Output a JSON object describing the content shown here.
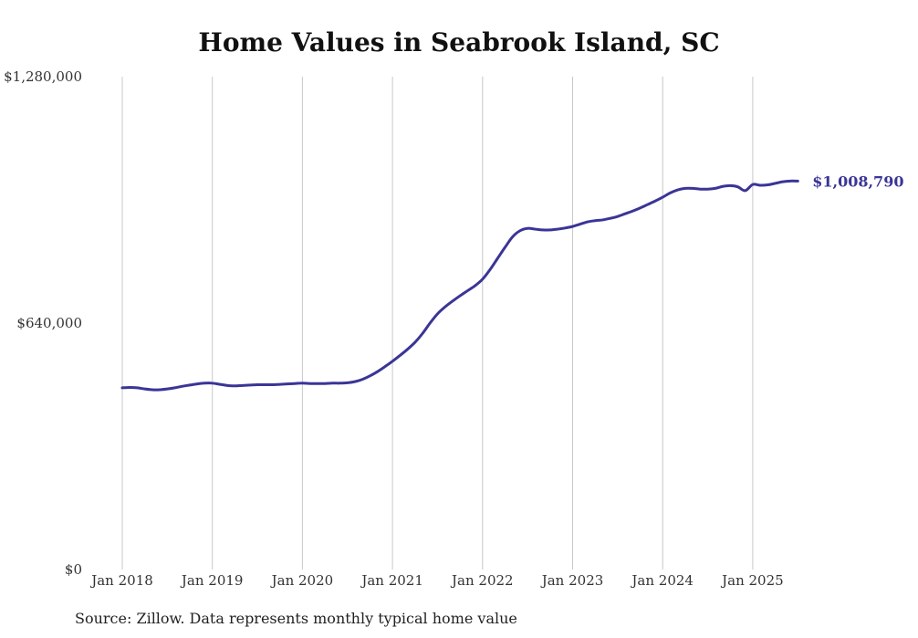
{
  "chart_data": {
    "type": "line",
    "title": "Home Values in Seabrook Island, SC",
    "xlabel": "",
    "ylabel": "",
    "ylim": [
      0,
      1280000
    ],
    "y_ticks": [
      {
        "value": 0,
        "label": "$0"
      },
      {
        "value": 640000,
        "label": "$640,000"
      },
      {
        "value": 1280000,
        "label": "$1,280,000"
      }
    ],
    "x_ticks": [
      {
        "value": "2018-01",
        "label": "Jan 2018"
      },
      {
        "value": "2019-01",
        "label": "Jan 2019"
      },
      {
        "value": "2020-01",
        "label": "Jan 2020"
      },
      {
        "value": "2021-01",
        "label": "Jan 2021"
      },
      {
        "value": "2022-01",
        "label": "Jan 2022"
      },
      {
        "value": "2023-01",
        "label": "Jan 2023"
      },
      {
        "value": "2024-01",
        "label": "Jan 2024"
      },
      {
        "value": "2025-01",
        "label": "Jan 2025"
      }
    ],
    "grid": {
      "vertical": true,
      "horizontal": false
    },
    "legend": "none",
    "line_color": "#3a3596",
    "end_label": "$1,008,790",
    "series": [
      {
        "points": [
          [
            "2018-01",
            472000
          ],
          [
            "2018-02",
            473000
          ],
          [
            "2018-03",
            472000
          ],
          [
            "2018-04",
            469000
          ],
          [
            "2018-05",
            467000
          ],
          [
            "2018-06",
            467000
          ],
          [
            "2018-07",
            469000
          ],
          [
            "2018-08",
            472000
          ],
          [
            "2018-09",
            476000
          ],
          [
            "2018-10",
            479000
          ],
          [
            "2018-11",
            482000
          ],
          [
            "2018-12",
            484000
          ],
          [
            "2019-01",
            484000
          ],
          [
            "2019-02",
            481000
          ],
          [
            "2019-03",
            478000
          ],
          [
            "2019-04",
            477000
          ],
          [
            "2019-05",
            478000
          ],
          [
            "2019-06",
            479000
          ],
          [
            "2019-07",
            480000
          ],
          [
            "2019-08",
            480000
          ],
          [
            "2019-09",
            480000
          ],
          [
            "2019-10",
            481000
          ],
          [
            "2019-11",
            482000
          ],
          [
            "2019-12",
            483000
          ],
          [
            "2020-01",
            484000
          ],
          [
            "2020-02",
            483000
          ],
          [
            "2020-03",
            483000
          ],
          [
            "2020-04",
            483000
          ],
          [
            "2020-05",
            484000
          ],
          [
            "2020-06",
            484000
          ],
          [
            "2020-07",
            485000
          ],
          [
            "2020-08",
            488000
          ],
          [
            "2020-09",
            494000
          ],
          [
            "2020-10",
            503000
          ],
          [
            "2020-11",
            514000
          ],
          [
            "2020-12",
            527000
          ],
          [
            "2021-01",
            541000
          ],
          [
            "2021-02",
            556000
          ],
          [
            "2021-03",
            572000
          ],
          [
            "2021-04",
            590000
          ],
          [
            "2021-05",
            613000
          ],
          [
            "2021-06",
            640000
          ],
          [
            "2021-07",
            664000
          ],
          [
            "2021-08",
            682000
          ],
          [
            "2021-09",
            697000
          ],
          [
            "2021-10",
            711000
          ],
          [
            "2021-11",
            724000
          ],
          [
            "2021-12",
            737000
          ],
          [
            "2022-01",
            754000
          ],
          [
            "2022-02",
            779000
          ],
          [
            "2022-03",
            808000
          ],
          [
            "2022-04",
            837000
          ],
          [
            "2022-05",
            864000
          ],
          [
            "2022-06",
            880000
          ],
          [
            "2022-07",
            886000
          ],
          [
            "2022-08",
            884000
          ],
          [
            "2022-09",
            882000
          ],
          [
            "2022-10",
            882000
          ],
          [
            "2022-11",
            884000
          ],
          [
            "2022-12",
            887000
          ],
          [
            "2023-01",
            891000
          ],
          [
            "2023-02",
            897000
          ],
          [
            "2023-03",
            903000
          ],
          [
            "2023-04",
            906000
          ],
          [
            "2023-05",
            908000
          ],
          [
            "2023-06",
            912000
          ],
          [
            "2023-07",
            917000
          ],
          [
            "2023-08",
            924000
          ],
          [
            "2023-09",
            931000
          ],
          [
            "2023-10",
            939000
          ],
          [
            "2023-11",
            948000
          ],
          [
            "2023-12",
            957000
          ],
          [
            "2024-01",
            967000
          ],
          [
            "2024-02",
            978000
          ],
          [
            "2024-03",
            986000
          ],
          [
            "2024-04",
            990000
          ],
          [
            "2024-05",
            990000
          ],
          [
            "2024-06",
            988000
          ],
          [
            "2024-07",
            988000
          ],
          [
            "2024-08",
            990000
          ],
          [
            "2024-09",
            995000
          ],
          [
            "2024-10",
            997000
          ],
          [
            "2024-11",
            994000
          ],
          [
            "2024-12",
            984000
          ],
          [
            "2025-01",
            1000000
          ],
          [
            "2025-02",
            998000
          ],
          [
            "2025-03",
            999000
          ],
          [
            "2025-04",
            1003000
          ],
          [
            "2025-05",
            1007000
          ],
          [
            "2025-06",
            1009000
          ],
          [
            "2025-07",
            1008790
          ]
        ]
      }
    ],
    "source": "Source: Zillow. Data represents monthly typical home value"
  }
}
